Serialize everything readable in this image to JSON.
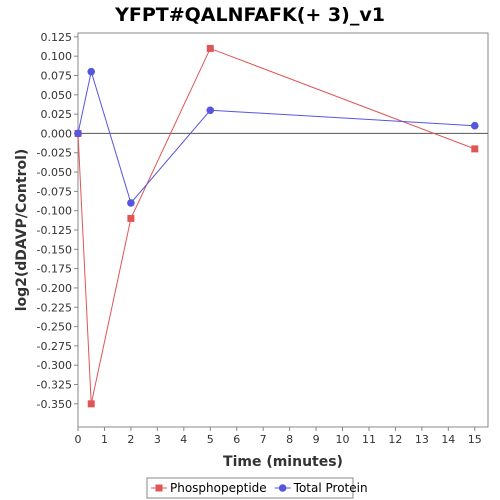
{
  "chart_data": {
    "type": "line",
    "title": "YFPT#QALNFAFK(+ 3)_v1",
    "xlabel": "Time (minutes)",
    "ylabel": "log2(dDAVP/Control)",
    "xlim": [
      0,
      15.5
    ],
    "ylim": [
      -0.38,
      0.13
    ],
    "x_ticks": [
      0,
      1,
      2,
      3,
      4,
      5,
      6,
      7,
      8,
      9,
      10,
      11,
      12,
      13,
      14,
      15
    ],
    "y_ticks": [
      0.125,
      0.1,
      0.075,
      0.05,
      0.025,
      0.0,
      -0.025,
      -0.05,
      -0.075,
      -0.1,
      -0.125,
      -0.15,
      -0.175,
      -0.2,
      -0.225,
      -0.25,
      -0.275,
      -0.3,
      -0.325,
      -0.35
    ],
    "y_tick_labels": [
      "0.125",
      "0.100",
      "0.075",
      "0.050",
      "0.025",
      "0.000",
      "-0.025",
      "-0.050",
      "-0.075",
      "-0.100",
      "-0.125",
      "-0.150",
      "-0.175",
      "-0.200",
      "-0.225",
      "-0.250",
      "-0.275",
      "-0.300",
      "-0.325",
      "-0.350"
    ],
    "zero_line": true,
    "grid": false,
    "legend_position": "bottom",
    "series": [
      {
        "name": "Phosphopeptide",
        "color": "#e05555",
        "marker": "square",
        "x": [
          0,
          0.5,
          2,
          5,
          15
        ],
        "y": [
          0.0,
          -0.35,
          -0.11,
          0.11,
          -0.02
        ]
      },
      {
        "name": "Total Protein",
        "color": "#5555e0",
        "marker": "circle",
        "x": [
          0,
          0.5,
          2,
          5,
          15
        ],
        "y": [
          0.0,
          0.08,
          -0.09,
          0.03,
          0.01
        ]
      }
    ]
  }
}
